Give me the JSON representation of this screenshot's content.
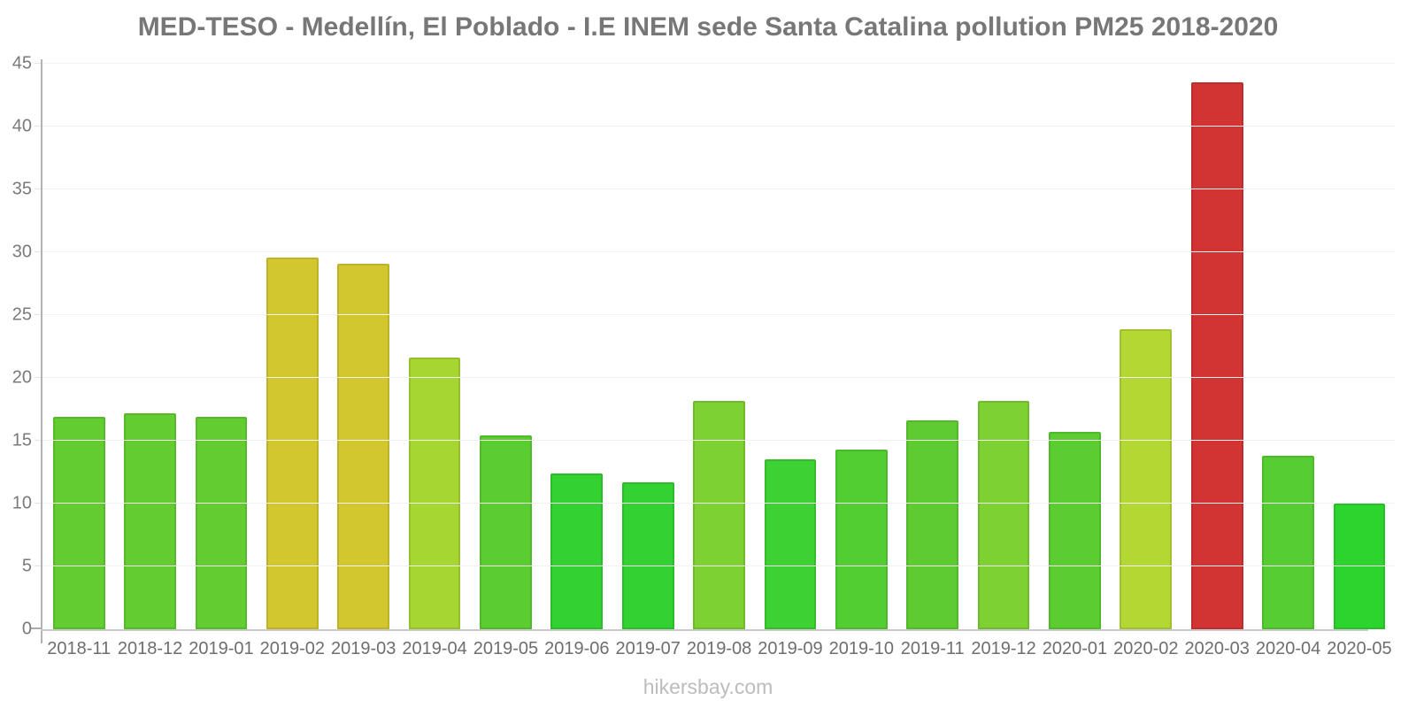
{
  "title": "MED-TESO - Medellín, El Poblado - I.E INEM sede Santa Catalina pollution PM25 2018-2020",
  "footer": "hikersbay.com",
  "chart_data": {
    "type": "bar",
    "title": "MED-TESO - Medellín, El Poblado - I.E INEM sede Santa Catalina pollution PM25 2018-2020",
    "xlabel": "",
    "ylabel": "",
    "ylim": [
      0,
      45
    ],
    "yticks": [
      0,
      5,
      10,
      15,
      20,
      25,
      30,
      35,
      40,
      45
    ],
    "grid": "horizontal-light",
    "legend": "none",
    "categories": [
      "2018-11",
      "2018-12",
      "2019-01",
      "2019-02",
      "2019-03",
      "2019-04",
      "2019-05",
      "2019-06",
      "2019-07",
      "2019-08",
      "2019-09",
      "2019-10",
      "2019-11",
      "2019-12",
      "2020-01",
      "2020-02",
      "2020-03",
      "2020-04",
      "2020-05"
    ],
    "values": [
      16.9,
      17.2,
      16.9,
      29.6,
      29.1,
      21.6,
      15.4,
      12.4,
      11.7,
      18.2,
      13.5,
      14.3,
      16.6,
      18.2,
      15.7,
      23.9,
      43.5,
      13.8,
      10.0
    ],
    "bar_colors": [
      "#62cc30",
      "#62cc30",
      "#62cc30",
      "#d3c72f",
      "#d3c72f",
      "#a6d632",
      "#5bcd31",
      "#33d132",
      "#33d132",
      "#7dd133",
      "#3dd133",
      "#52ce33",
      "#5ecc31",
      "#7dd133",
      "#5bcd31",
      "#b3d733",
      "#d23434",
      "#55cd33",
      "#2ed42e"
    ]
  },
  "colors": {
    "background": "#ffffff",
    "title_text": "#777777",
    "ytick_text": "#7a7a7a",
    "xlabel_text": "#6e6e6e",
    "footer_text": "#bcbcbc",
    "y_axis_line": "#b3b3b3",
    "x_axis_line": "#c9c9c9",
    "gridline": "#f2f2f2"
  }
}
